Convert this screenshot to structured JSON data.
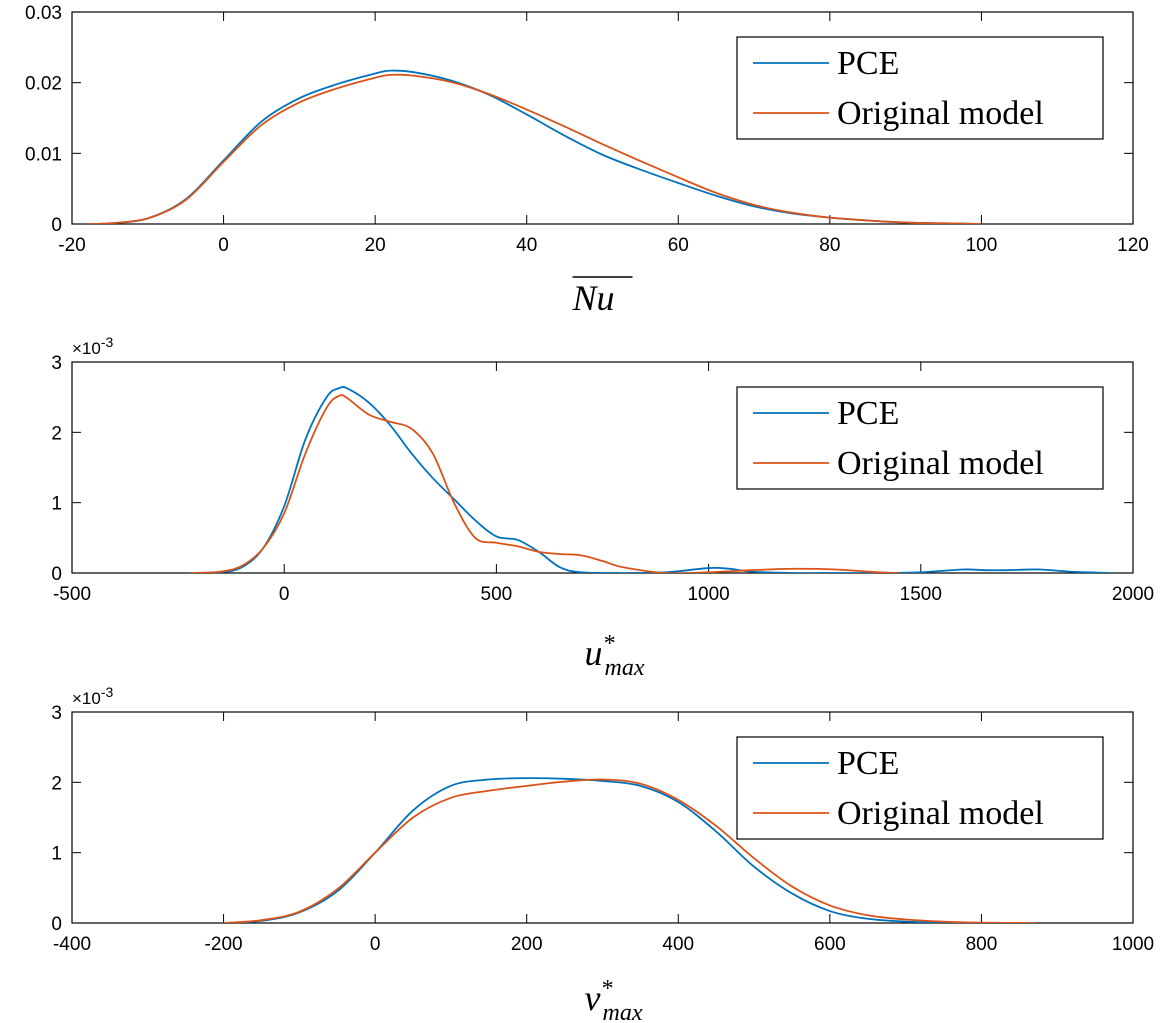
{
  "colors": {
    "pce": "#0072BD",
    "original": "#D95319",
    "axis": "#000000",
    "background": "#ffffff"
  },
  "chart_data": [
    {
      "type": "line",
      "xlabel": "Nu",
      "xlabel_overline": true,
      "xlim": [
        -20,
        120
      ],
      "ylim": [
        0,
        0.03
      ],
      "xticks": [
        -20,
        0,
        20,
        40,
        60,
        80,
        100,
        120
      ],
      "yticks": [
        0,
        0.01,
        0.02,
        0.03
      ],
      "xtick_labels": [
        "-20",
        "0",
        "20",
        "40",
        "60",
        "80",
        "100",
        "120"
      ],
      "ytick_labels": [
        "0",
        "0.01",
        "0.02",
        "0.03"
      ],
      "y_multiplier": "",
      "legend_position": "top-right",
      "series": [
        {
          "name": "PCE",
          "color": "#0072BD",
          "x": [
            -18,
            -15,
            -10,
            -5,
            0,
            5,
            10,
            15,
            20,
            22,
            25,
            30,
            35,
            40,
            45,
            50,
            55,
            60,
            65,
            70,
            75,
            80,
            85,
            90,
            95,
            100
          ],
          "y": [
            0,
            0.0001,
            0.0008,
            0.0035,
            0.009,
            0.0145,
            0.0178,
            0.0198,
            0.0213,
            0.0217,
            0.0215,
            0.0203,
            0.0183,
            0.0155,
            0.0125,
            0.0098,
            0.0077,
            0.0058,
            0.004,
            0.0025,
            0.0015,
            0.0009,
            0.0005,
            0.0002,
            0.0001,
            0
          ]
        },
        {
          "name": "Original model",
          "color": "#D95319",
          "x": [
            -18,
            -15,
            -10,
            -5,
            0,
            5,
            10,
            15,
            20,
            22,
            25,
            30,
            35,
            40,
            45,
            50,
            55,
            60,
            65,
            70,
            75,
            80,
            85,
            90,
            95,
            100
          ],
          "y": [
            0,
            0.0001,
            0.0008,
            0.0034,
            0.0088,
            0.014,
            0.0172,
            0.0192,
            0.0207,
            0.0211,
            0.021,
            0.0201,
            0.0184,
            0.0162,
            0.0138,
            0.0113,
            0.0089,
            0.0066,
            0.0044,
            0.0027,
            0.0016,
            0.0009,
            0.0005,
            0.0002,
            0.0001,
            0
          ]
        }
      ]
    },
    {
      "type": "line",
      "xlabel": "u",
      "xlabel_sup": "*",
      "xlabel_sub": "max",
      "xlim": [
        -500,
        2000
      ],
      "ylim": [
        0,
        3
      ],
      "xticks": [
        -500,
        0,
        500,
        1000,
        1500,
        2000
      ],
      "yticks": [
        0,
        1,
        2,
        3
      ],
      "xtick_labels": [
        "-500",
        "0",
        "500",
        "1000",
        "1500",
        "2000"
      ],
      "ytick_labels": [
        "0",
        "1",
        "2",
        "3"
      ],
      "y_multiplier": "×10",
      "y_multiplier_exp": "-3",
      "legend_position": "top-right",
      "series": [
        {
          "name": "PCE",
          "color": "#0072BD",
          "x": [
            -200,
            -150,
            -100,
            -50,
            0,
            50,
            100,
            130,
            150,
            200,
            250,
            300,
            350,
            400,
            450,
            500,
            550,
            600,
            650,
            700,
            800,
            900,
            1000,
            1050,
            1100,
            1200,
            1300,
            1400,
            1500,
            1600,
            1650,
            1700,
            1780,
            1850,
            1950
          ],
          "y": [
            0,
            0.01,
            0.08,
            0.35,
            0.95,
            1.9,
            2.5,
            2.63,
            2.62,
            2.42,
            2.1,
            1.7,
            1.35,
            1.05,
            0.75,
            0.52,
            0.47,
            0.3,
            0.08,
            0.01,
            0,
            0.01,
            0.07,
            0.06,
            0.02,
            0,
            0,
            0,
            0.01,
            0.05,
            0.04,
            0.04,
            0.05,
            0.02,
            0
          ]
        },
        {
          "name": "Original model",
          "color": "#D95319",
          "x": [
            -220,
            -150,
            -100,
            -50,
            0,
            50,
            100,
            130,
            150,
            200,
            250,
            300,
            350,
            400,
            450,
            500,
            550,
            600,
            650,
            700,
            750,
            800,
            900,
            1000,
            1100,
            1200,
            1300,
            1400,
            1450
          ],
          "y": [
            0,
            0.02,
            0.1,
            0.35,
            0.85,
            1.7,
            2.35,
            2.52,
            2.48,
            2.25,
            2.15,
            2.05,
            1.7,
            1.0,
            0.5,
            0.43,
            0.38,
            0.3,
            0.27,
            0.25,
            0.17,
            0.08,
            0.0,
            0.01,
            0.04,
            0.06,
            0.05,
            0.01,
            0
          ]
        }
      ]
    },
    {
      "type": "line",
      "xlabel": "v",
      "xlabel_sup": "*",
      "xlabel_sub": "max",
      "xlim": [
        -400,
        1000
      ],
      "ylim": [
        0,
        3
      ],
      "xticks": [
        -400,
        -200,
        0,
        200,
        400,
        600,
        800,
        1000
      ],
      "yticks": [
        0,
        1,
        2,
        3
      ],
      "xtick_labels": [
        "-400",
        "-200",
        "0",
        "200",
        "400",
        "600",
        "800",
        "1000"
      ],
      "ytick_labels": [
        "0",
        "1",
        "2",
        "3"
      ],
      "y_multiplier": "×10",
      "y_multiplier_exp": "-3",
      "legend_position": "top-right",
      "series": [
        {
          "name": "PCE",
          "color": "#0072BD",
          "x": [
            -200,
            -150,
            -100,
            -50,
            0,
            50,
            100,
            150,
            200,
            250,
            300,
            350,
            400,
            450,
            500,
            550,
            600,
            650,
            700,
            750,
            800,
            850
          ],
          "y": [
            0,
            0.03,
            0.15,
            0.45,
            1.0,
            1.6,
            1.95,
            2.04,
            2.06,
            2.05,
            2.02,
            1.95,
            1.72,
            1.3,
            0.8,
            0.42,
            0.17,
            0.06,
            0.02,
            0.005,
            0.001,
            0
          ]
        },
        {
          "name": "Original model",
          "color": "#D95319",
          "x": [
            -200,
            -150,
            -100,
            -50,
            0,
            50,
            100,
            150,
            200,
            250,
            300,
            350,
            400,
            450,
            500,
            550,
            600,
            650,
            700,
            750,
            800,
            870
          ],
          "y": [
            0,
            0.04,
            0.16,
            0.48,
            1.0,
            1.5,
            1.78,
            1.88,
            1.95,
            2.01,
            2.04,
            1.98,
            1.75,
            1.38,
            0.92,
            0.52,
            0.25,
            0.11,
            0.05,
            0.02,
            0.005,
            0
          ]
        }
      ]
    }
  ]
}
